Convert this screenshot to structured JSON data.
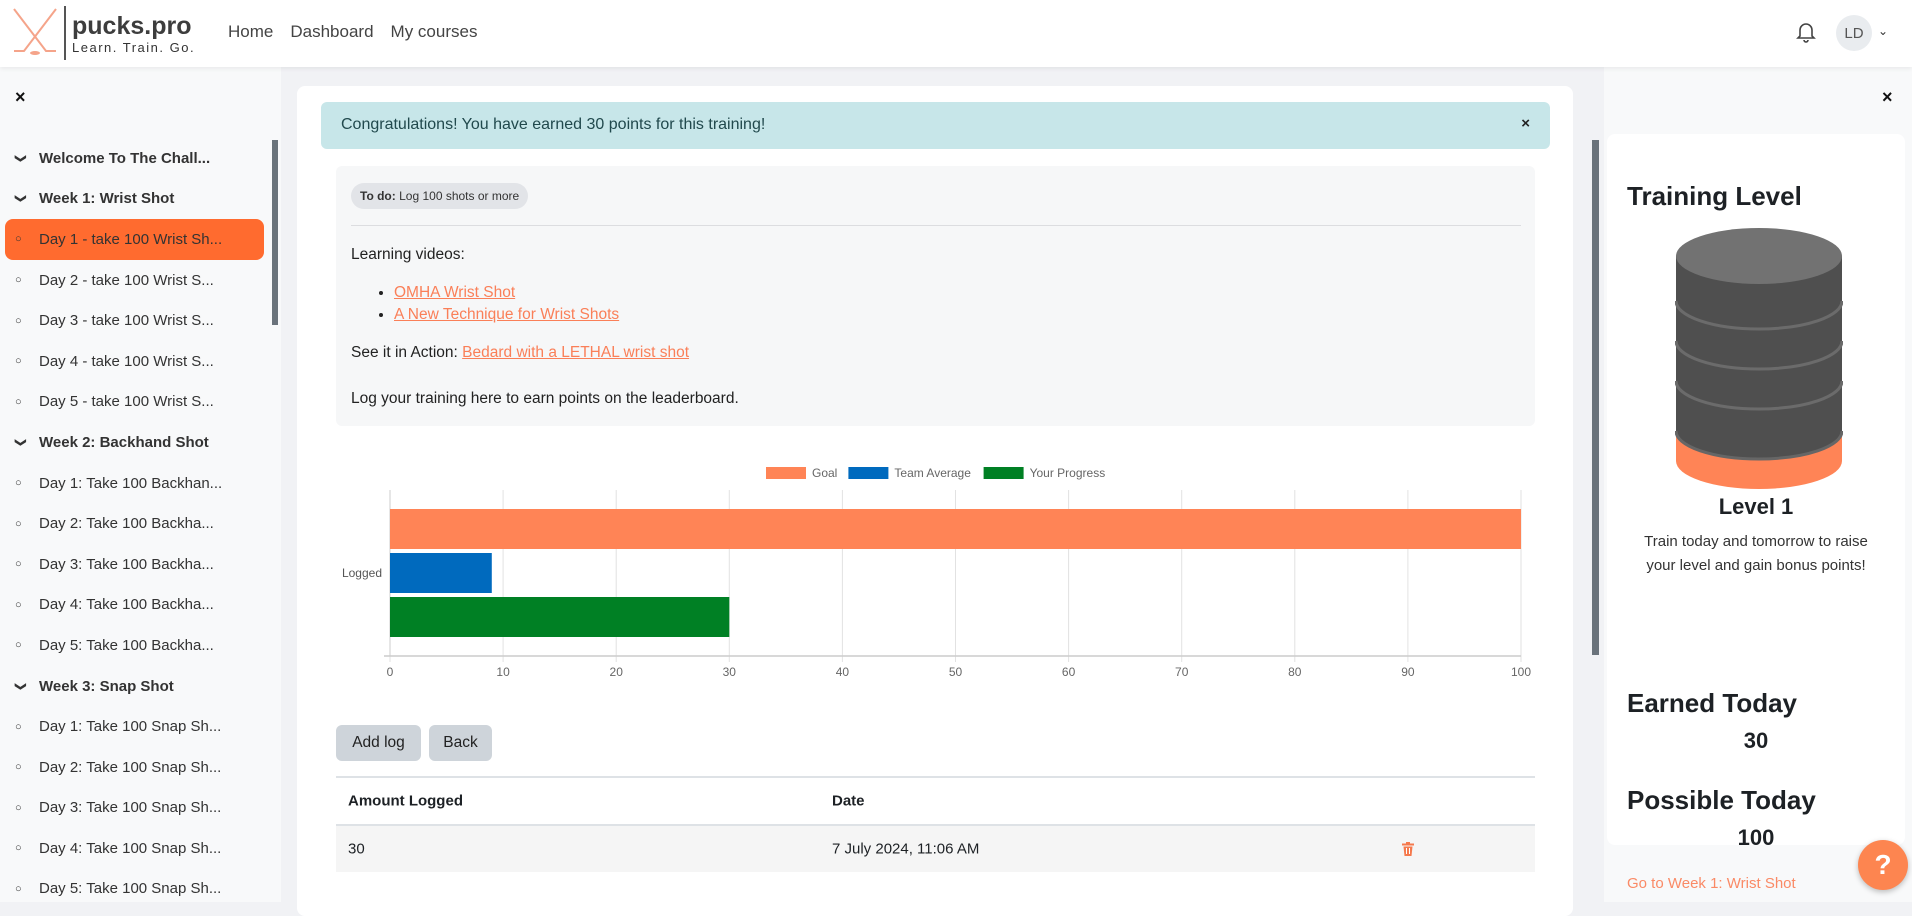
{
  "header": {
    "brand": "pucks.pro",
    "tagline": "Learn. Train. Go.",
    "nav": [
      "Home",
      "Dashboard",
      "My courses"
    ],
    "avatar_initials": "LD",
    "icons": [
      "bell-icon",
      "chevron-down-icon"
    ]
  },
  "sidebar": {
    "close_icon": "×",
    "items": [
      {
        "label": "Welcome To The Chall...",
        "type": "section"
      },
      {
        "label": "Week 1: Wrist Shot",
        "type": "section"
      },
      {
        "label": "Day 1 - take 100 Wrist Sh...",
        "type": "activity",
        "active": true
      },
      {
        "label": "Day 2 - take 100 Wrist S...",
        "type": "activity"
      },
      {
        "label": "Day 3 - take 100 Wrist S...",
        "type": "activity"
      },
      {
        "label": "Day 4 - take 100 Wrist S...",
        "type": "activity"
      },
      {
        "label": "Day 5 - take 100 Wrist S...",
        "type": "activity"
      },
      {
        "label": "Week 2: Backhand Shot",
        "type": "section"
      },
      {
        "label": "Day 1: Take 100 Backhan...",
        "type": "activity"
      },
      {
        "label": "Day 2: Take 100 Backha...",
        "type": "activity"
      },
      {
        "label": "Day 3: Take 100 Backha...",
        "type": "activity"
      },
      {
        "label": "Day 4: Take 100 Backha...",
        "type": "activity"
      },
      {
        "label": "Day 5: Take 100 Backha...",
        "type": "activity"
      },
      {
        "label": "Week 3: Snap Shot",
        "type": "section"
      },
      {
        "label": "Day 1: Take 100 Snap Sh...",
        "type": "activity"
      },
      {
        "label": "Day 2: Take 100 Snap Sh...",
        "type": "activity"
      },
      {
        "label": "Day 3: Take 100 Snap Sh...",
        "type": "activity"
      },
      {
        "label": "Day 4: Take 100 Snap Sh...",
        "type": "activity"
      },
      {
        "label": "Day 5: Take 100 Snap Sh...",
        "type": "activity"
      }
    ]
  },
  "main": {
    "alert": "Congratulations! You have earned 30 points for this training!",
    "alert_close": "×",
    "todo_label": "To do:",
    "todo_text": "Log 100 shots or more",
    "learning_label": "Learning videos:",
    "links": [
      "OMHA Wrist Shot",
      "A New Technique for Wrist Shots"
    ],
    "action_label": "See it in Action:",
    "action_link": "Bedard with a LETHAL wrist shot",
    "log_text": "Log your training here to earn points on the leaderboard.",
    "buttons": {
      "add": "Add log",
      "back": "Back"
    },
    "table": {
      "headers": [
        "Amount Logged",
        "Date"
      ],
      "rows": [
        {
          "amount": "30",
          "date": "7 July 2024, 11:06 AM"
        }
      ]
    }
  },
  "chart_data": {
    "type": "bar",
    "orientation": "horizontal",
    "categories": [
      "Logged"
    ],
    "series": [
      {
        "name": "Goal",
        "values": [
          100
        ],
        "color": "#ff8456"
      },
      {
        "name": "Team Average",
        "values": [
          9
        ],
        "color": "#006abe"
      },
      {
        "name": "Your Progress",
        "values": [
          30
        ],
        "color": "#008024"
      }
    ],
    "xlim": [
      0,
      100
    ],
    "xticks": [
      0,
      10,
      20,
      30,
      40,
      50,
      60,
      70,
      80,
      90,
      100
    ],
    "grid": true,
    "legend": "top"
  },
  "right": {
    "close_icon": "×",
    "title": "Training Level",
    "level": "Level 1",
    "level_fill": 0.15,
    "desc_1": "Train today and tomorrow to raise",
    "desc_2": "your level and gain bonus points!",
    "earned_label": "Earned Today",
    "earned": "30",
    "possible_label": "Possible Today",
    "possible": "100",
    "link": "Go to Week 1: Wrist Shot",
    "help": "?"
  }
}
